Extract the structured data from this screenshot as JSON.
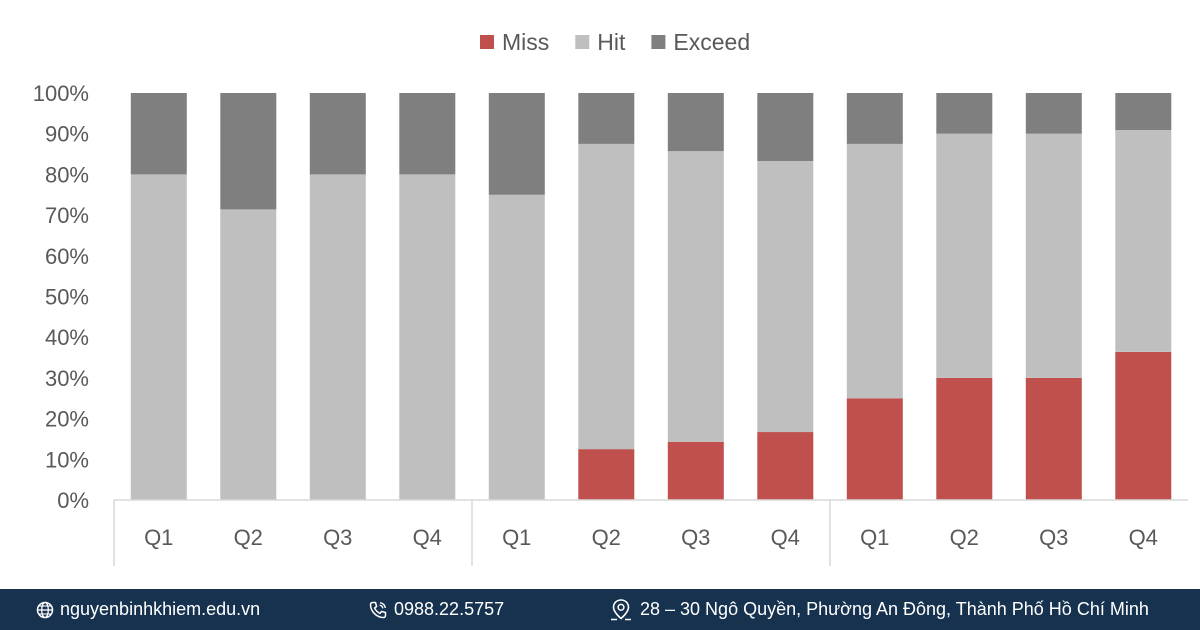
{
  "chart_data": {
    "type": "bar",
    "stacked": true,
    "title": "",
    "categories": [
      "Q1",
      "Q2",
      "Q3",
      "Q4",
      "Q1",
      "Q2",
      "Q3",
      "Q4",
      "Q1",
      "Q2",
      "Q3",
      "Q4"
    ],
    "series": [
      {
        "name": "Miss",
        "color": "#c0504d",
        "values": [
          0,
          0,
          0,
          0,
          0,
          12.5,
          14.3,
          16.7,
          25,
          30,
          30,
          36.4
        ]
      },
      {
        "name": "Hit",
        "color": "#bfbfbf",
        "values": [
          80,
          71.4,
          80,
          80,
          75,
          75,
          71.4,
          66.6,
          62.5,
          60,
          60,
          54.5
        ]
      },
      {
        "name": "Exceed",
        "color": "#7f7f7f",
        "values": [
          20,
          28.6,
          20,
          20,
          25,
          12.5,
          14.3,
          16.7,
          12.5,
          10,
          10,
          9.1
        ]
      }
    ],
    "ylim": [
      0,
      100
    ],
    "yticks": [
      "0%",
      "10%",
      "20%",
      "30%",
      "40%",
      "50%",
      "60%",
      "70%",
      "80%",
      "90%",
      "100%"
    ],
    "legend_position": "top",
    "grid": false,
    "group_separators_after": [
      4,
      8
    ]
  },
  "footer": {
    "website": "nguyenbinhkhiem.edu.vn",
    "phone": "0988.22.5757",
    "address": "28 – 30 Ngô Quyền, Phường An Đông, Thành Phố Hồ Chí Minh",
    "background": "#16324f"
  }
}
